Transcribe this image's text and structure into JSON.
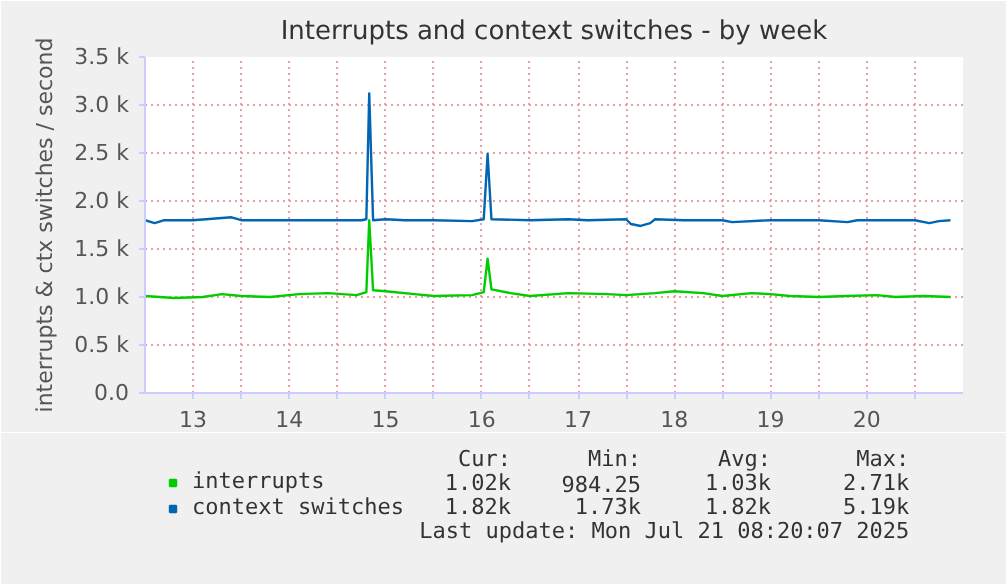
{
  "chart_data": {
    "type": "line",
    "title": "Interrupts and context switches - by week",
    "ylabel": "interrupts & ctx switches / second",
    "xlim": [
      13.0,
      21.5
    ],
    "ylim": [
      0,
      3500
    ],
    "xticks": [
      {
        "value": 13.5,
        "label": "13"
      },
      {
        "value": 14.5,
        "label": "14"
      },
      {
        "value": 15.5,
        "label": "15"
      },
      {
        "value": 16.5,
        "label": "16"
      },
      {
        "value": 17.5,
        "label": "17"
      },
      {
        "value": 18.5,
        "label": "18"
      },
      {
        "value": 19.5,
        "label": "19"
      },
      {
        "value": 20.5,
        "label": "20"
      },
      {
        "value": 14.0,
        "label": null
      },
      {
        "value": 15.0,
        "label": null
      },
      {
        "value": 16.0,
        "label": null
      },
      {
        "value": 17.0,
        "label": null
      },
      {
        "value": 18.0,
        "label": null
      },
      {
        "value": 19.0,
        "label": null
      },
      {
        "value": 20.0,
        "label": null
      },
      {
        "value": 21.0,
        "label": null
      }
    ],
    "yticks": [
      {
        "value": 0,
        "label": "0.0"
      },
      {
        "value": 500,
        "label": "0.5 k"
      },
      {
        "value": 1000,
        "label": "1.0 k"
      },
      {
        "value": 1500,
        "label": "1.5 k"
      },
      {
        "value": 2000,
        "label": "2.0 k"
      },
      {
        "value": 2500,
        "label": "2.5 k"
      },
      {
        "value": 3000,
        "label": "3.0 k"
      },
      {
        "value": 3500,
        "label": "3.5 k"
      }
    ],
    "grid": true,
    "legend": "bottom left",
    "marker": "none",
    "line_style": "solid",
    "series": [
      {
        "name": "interrupts",
        "color": "#00cc00",
        "x": [
          13.0,
          13.3,
          13.6,
          13.8,
          14.0,
          14.3,
          14.6,
          14.9,
          15.2,
          15.3,
          15.33,
          15.37,
          15.5,
          15.8,
          16.0,
          16.4,
          16.52,
          16.56,
          16.6,
          16.8,
          17.0,
          17.4,
          17.8,
          18.0,
          18.3,
          18.5,
          18.8,
          19.0,
          19.3,
          19.5,
          19.7,
          20.0,
          20.3,
          20.6,
          20.8,
          21.1,
          21.37
        ],
        "values": [
          1010,
          990,
          1000,
          1030,
          1010,
          1000,
          1030,
          1040,
          1020,
          1050,
          1800,
          1070,
          1060,
          1030,
          1010,
          1020,
          1050,
          1400,
          1080,
          1040,
          1010,
          1040,
          1030,
          1020,
          1040,
          1060,
          1040,
          1010,
          1040,
          1030,
          1010,
          1000,
          1010,
          1020,
          1000,
          1010,
          1000
        ]
      },
      {
        "name": "context switches",
        "color": "#0066b3",
        "x": [
          13.0,
          13.1,
          13.2,
          13.5,
          13.9,
          14.0,
          14.5,
          15.0,
          15.25,
          15.3,
          15.33,
          15.37,
          15.5,
          15.7,
          16.0,
          16.4,
          16.52,
          16.56,
          16.6,
          17.0,
          17.4,
          17.6,
          18.0,
          18.05,
          18.15,
          18.25,
          18.3,
          18.6,
          19.0,
          19.1,
          19.5,
          20.0,
          20.3,
          20.4,
          21.0,
          21.15,
          21.25,
          21.37
        ],
        "values": [
          1800,
          1770,
          1800,
          1800,
          1830,
          1800,
          1800,
          1800,
          1800,
          1810,
          3120,
          1800,
          1810,
          1800,
          1800,
          1790,
          1810,
          2490,
          1810,
          1800,
          1810,
          1800,
          1810,
          1760,
          1740,
          1770,
          1810,
          1800,
          1800,
          1780,
          1800,
          1800,
          1780,
          1800,
          1800,
          1770,
          1790,
          1800
        ]
      }
    ],
    "annotations": [
      "Cur:",
      "Min:",
      "Avg:",
      "Max:",
      "1.02k",
      "984.25",
      "1.03k",
      "2.71k",
      "1.82k",
      "1.73k",
      "1.82k",
      "5.19k",
      "Last update: Mon Jul 21 08:20:07 2025"
    ]
  }
}
